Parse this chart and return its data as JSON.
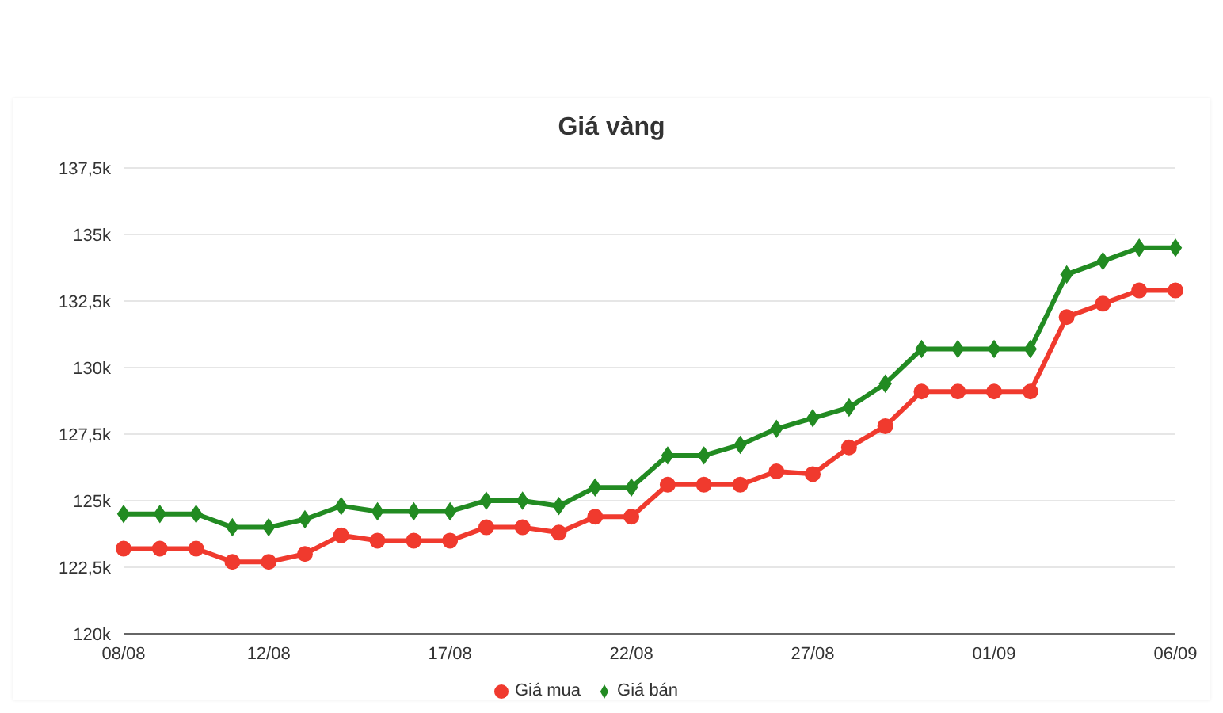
{
  "chart_data": {
    "type": "line",
    "title": "Giá vàng",
    "categories": [
      "08/08",
      null,
      null,
      null,
      "12/08",
      null,
      null,
      null,
      null,
      "17/08",
      null,
      null,
      null,
      null,
      "22/08",
      null,
      null,
      null,
      null,
      "27/08",
      null,
      null,
      null,
      null,
      "01/09",
      null,
      null,
      null,
      null,
      "06/09"
    ],
    "series": [
      {
        "name": "Giá mua",
        "color": "#f03a2e",
        "marker": "circle",
        "values": [
          123.2,
          123.2,
          123.2,
          122.7,
          122.7,
          123.0,
          123.7,
          123.5,
          123.5,
          123.5,
          124.0,
          124.0,
          123.8,
          124.4,
          124.4,
          125.6,
          125.6,
          125.6,
          126.1,
          126.0,
          127.0,
          127.8,
          129.1,
          129.1,
          129.1,
          129.1,
          131.9,
          132.4,
          132.9,
          132.9
        ]
      },
      {
        "name": "Giá bán",
        "color": "#228b22",
        "marker": "diamond",
        "values": [
          124.5,
          124.5,
          124.5,
          124.0,
          124.0,
          124.3,
          124.8,
          124.6,
          124.6,
          124.6,
          125.0,
          125.0,
          124.8,
          125.5,
          125.5,
          126.7,
          126.7,
          127.1,
          127.7,
          128.1,
          128.5,
          129.4,
          130.7,
          130.7,
          130.7,
          130.7,
          133.5,
          134.0,
          134.5,
          134.5
        ]
      }
    ],
    "ylim": [
      120,
      137.5
    ],
    "yticks": [
      {
        "value": 120,
        "label": "120k"
      },
      {
        "value": 122.5,
        "label": "122,5k"
      },
      {
        "value": 125,
        "label": "125k"
      },
      {
        "value": 127.5,
        "label": "127,5k"
      },
      {
        "value": 130,
        "label": "130k"
      },
      {
        "value": 132.5,
        "label": "132,5k"
      },
      {
        "value": 135,
        "label": "135k"
      },
      {
        "value": 137.5,
        "label": "137,5k"
      }
    ],
    "grid": "y",
    "legend": "bottom",
    "line_style": "solid"
  }
}
